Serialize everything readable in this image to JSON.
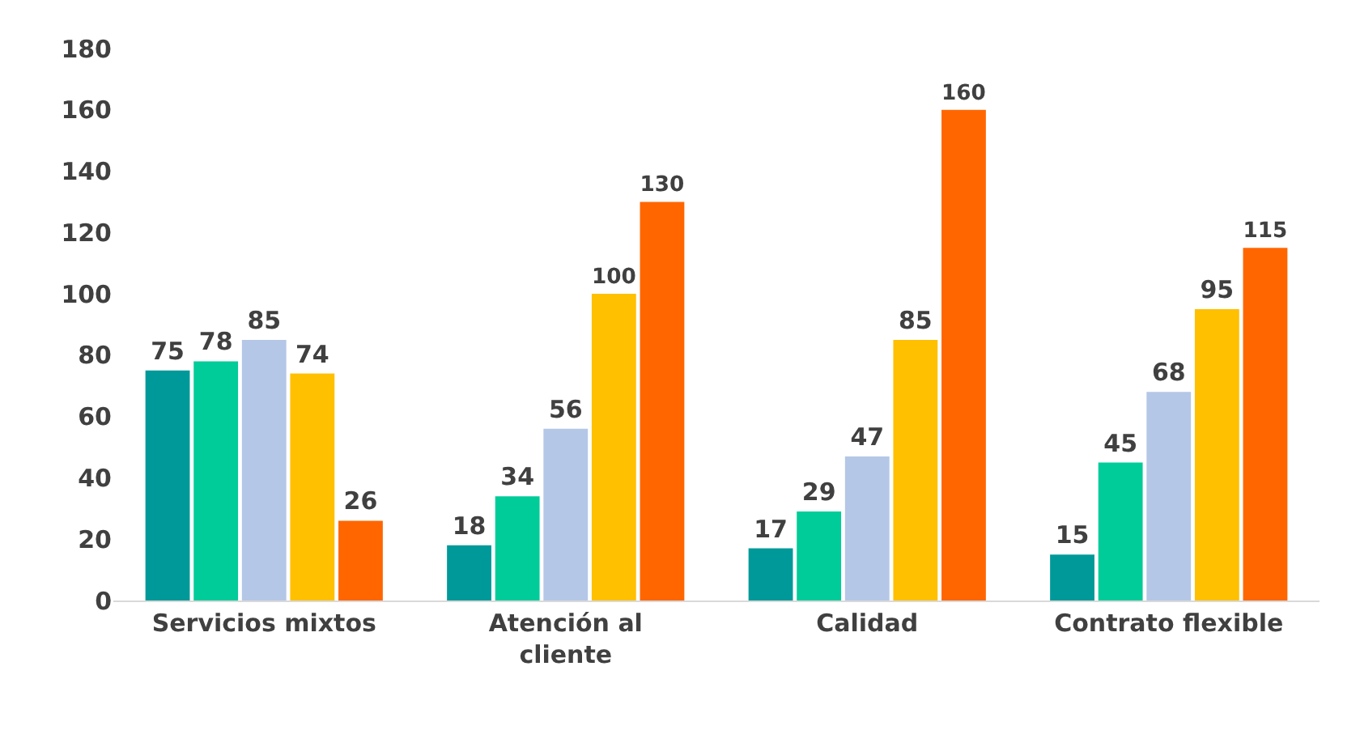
{
  "chart_data": {
    "type": "bar",
    "categories": [
      "Servicios mixtos",
      "Atención al cliente",
      "Calidad",
      "Contrato flexible"
    ],
    "series": [
      {
        "color": "#009999",
        "values": [
          75,
          18,
          17,
          15
        ]
      },
      {
        "color": "#00cc99",
        "values": [
          78,
          34,
          29,
          45
        ]
      },
      {
        "color": "#b4c7e7",
        "values": [
          85,
          56,
          47,
          68
        ]
      },
      {
        "color": "#ffc000",
        "values": [
          74,
          100,
          85,
          95
        ]
      },
      {
        "color": "#ff6600",
        "values": [
          26,
          130,
          160,
          115
        ]
      }
    ],
    "ylim": [
      0,
      180
    ],
    "yticks": [
      0,
      20,
      40,
      60,
      80,
      100,
      120,
      140,
      160,
      180
    ],
    "data_labels": true
  }
}
